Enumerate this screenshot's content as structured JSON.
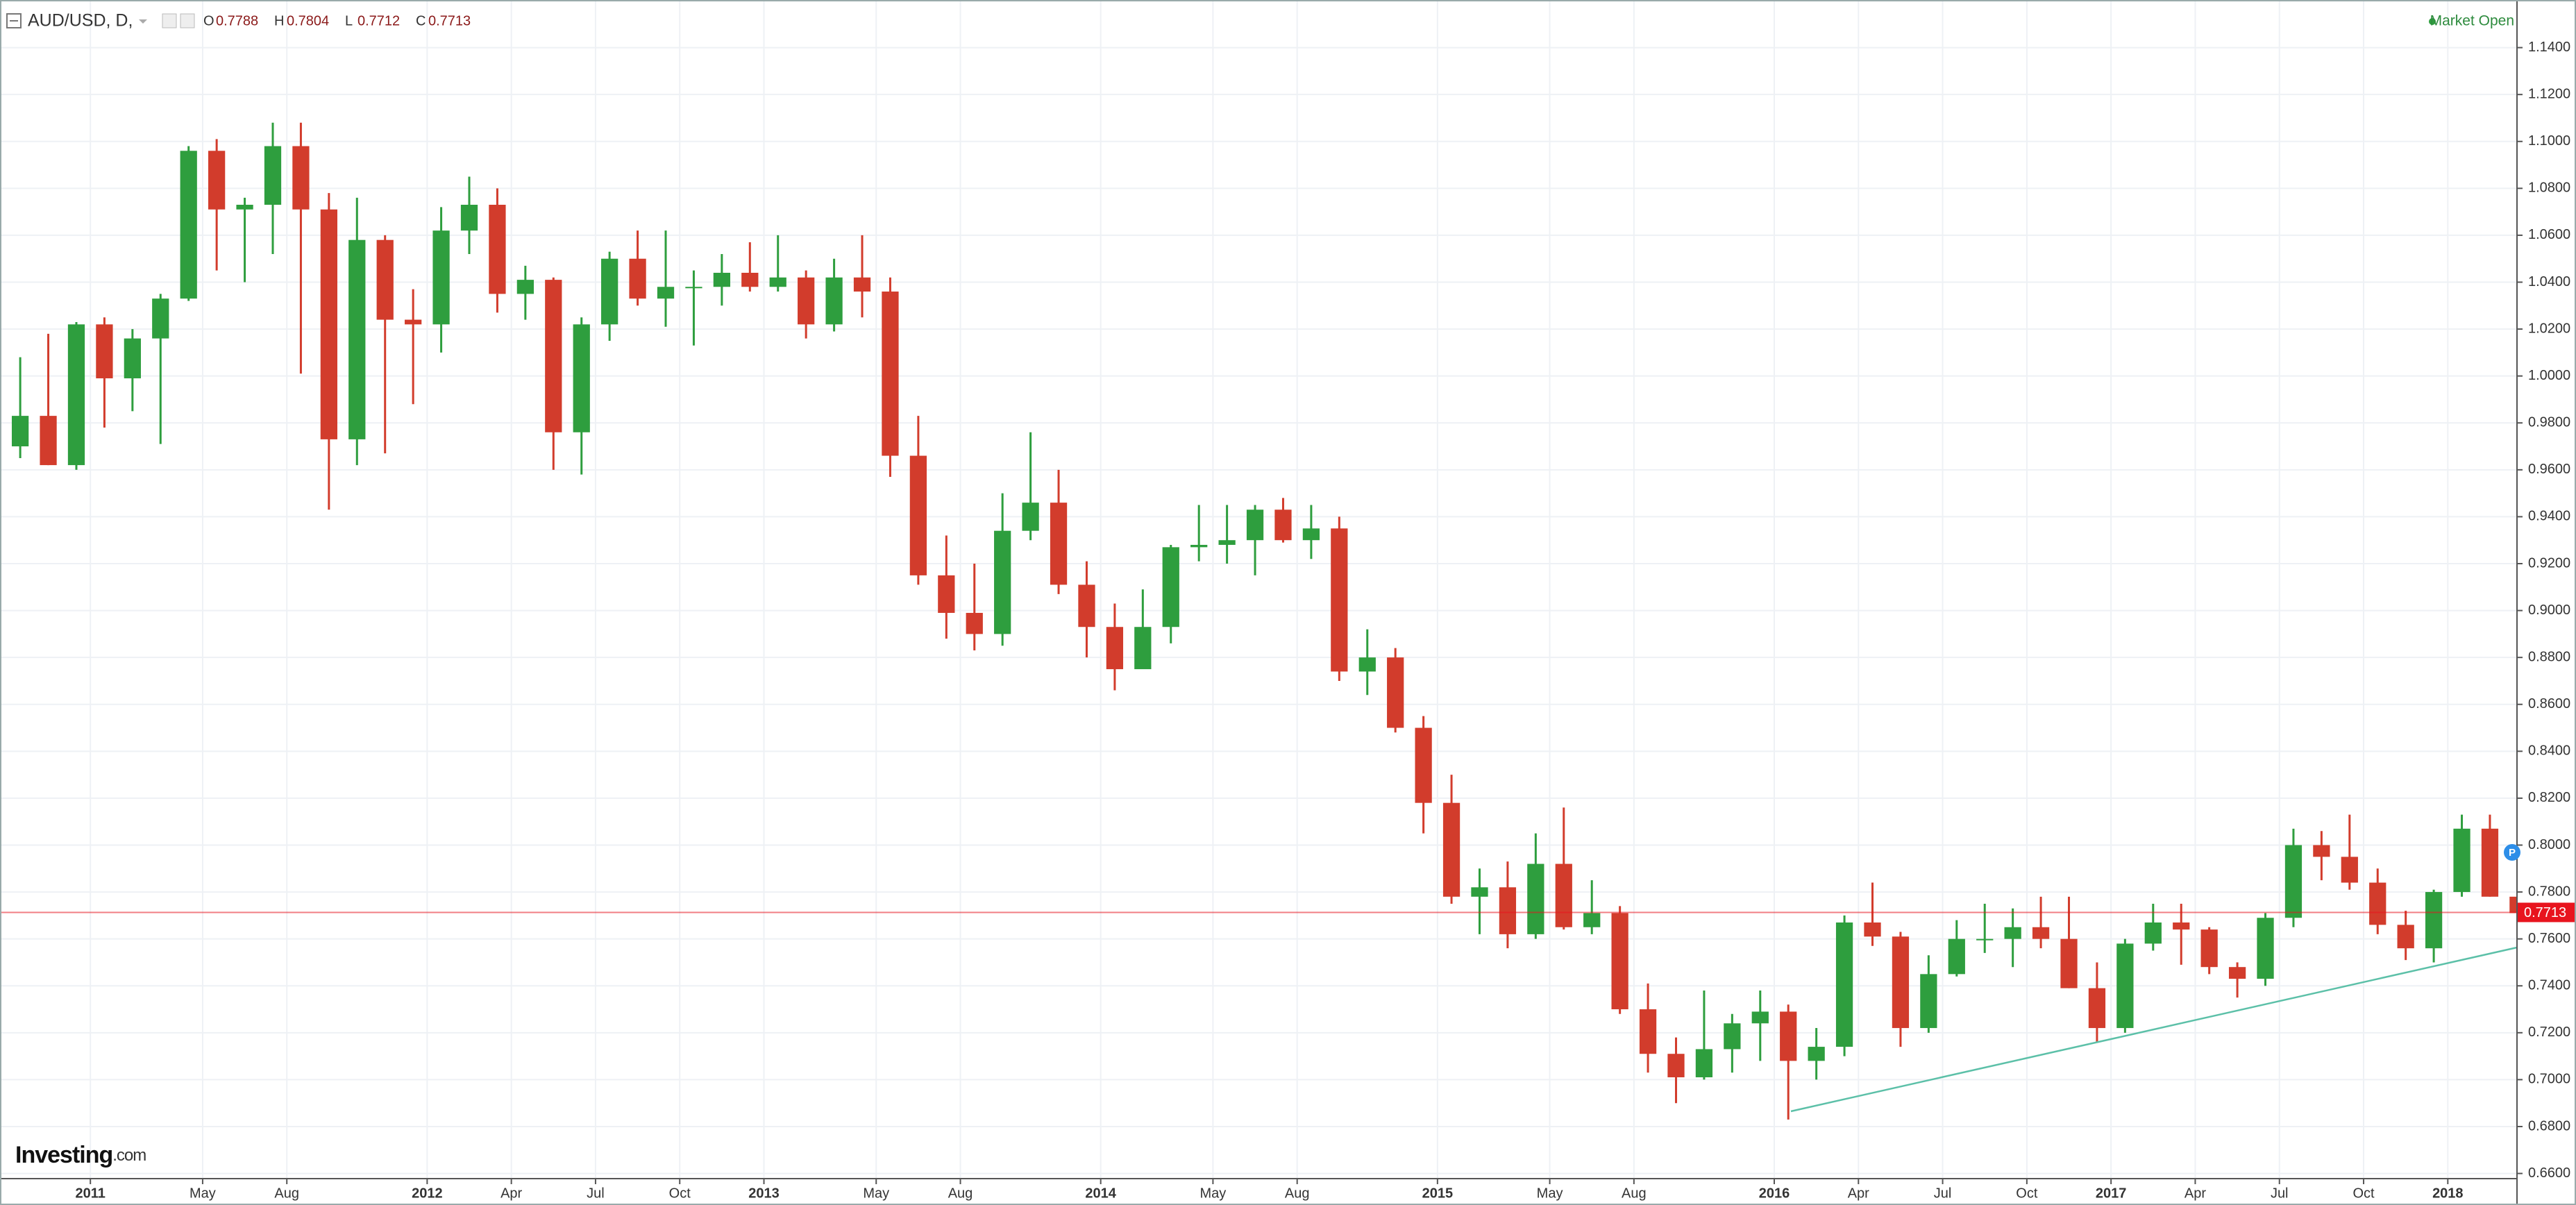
{
  "header": {
    "symbol": "AUD/USD, D,",
    "ohlc": [
      {
        "label": "O",
        "value": 0.7788
      },
      {
        "label": "H",
        "value": 0.7804
      },
      {
        "label": "L",
        "value": 0.7712
      },
      {
        "label": "C",
        "value": 0.7713
      }
    ],
    "status": "Market Open",
    "logo_main": "Investing",
    "logo_suffix": ".com"
  },
  "chart_data": {
    "type": "candlestick",
    "x": [
      "2010-10",
      "2010-11",
      "2010-12",
      "2011-01",
      "2011-02",
      "2011-03",
      "2011-04",
      "2011-05",
      "2011-06",
      "2011-07",
      "2011-08",
      "2011-09",
      "2011-10",
      "2011-11",
      "2011-12",
      "2012-01",
      "2012-02",
      "2012-03",
      "2012-04",
      "2012-05",
      "2012-06",
      "2012-07",
      "2012-08",
      "2012-09",
      "2012-10",
      "2012-11",
      "2012-12",
      "2013-01",
      "2013-02",
      "2013-03",
      "2013-04",
      "2013-05",
      "2013-06",
      "2013-07",
      "2013-08",
      "2013-09",
      "2013-10",
      "2013-11",
      "2013-12",
      "2014-01",
      "2014-02",
      "2014-03",
      "2014-04",
      "2014-05",
      "2014-06",
      "2014-07",
      "2014-08",
      "2014-09",
      "2014-10",
      "2014-11",
      "2014-12",
      "2015-01",
      "2015-02",
      "2015-03",
      "2015-04",
      "2015-05",
      "2015-06",
      "2015-07",
      "2015-08",
      "2015-09",
      "2015-10",
      "2015-11",
      "2015-12",
      "2016-01",
      "2016-02",
      "2016-03",
      "2016-04",
      "2016-05",
      "2016-06",
      "2016-07",
      "2016-08",
      "2016-09",
      "2016-10",
      "2016-11",
      "2016-12",
      "2017-01",
      "2017-02",
      "2017-03",
      "2017-04",
      "2017-05",
      "2017-06",
      "2017-07",
      "2017-08",
      "2017-09",
      "2017-10",
      "2017-11",
      "2017-12",
      "2018-01",
      "2018-02",
      "2018-03"
    ],
    "open": [
      0.97,
      0.983,
      0.962,
      1.022,
      0.999,
      1.016,
      1.033,
      1.096,
      1.071,
      1.073,
      1.098,
      1.071,
      0.973,
      1.058,
      1.024,
      1.022,
      1.062,
      1.073,
      1.035,
      1.041,
      0.976,
      1.022,
      1.05,
      1.033,
      1.038,
      1.038,
      1.044,
      1.038,
      1.042,
      1.022,
      1.042,
      1.036,
      0.966,
      0.915,
      0.899,
      0.89,
      0.934,
      0.946,
      0.911,
      0.893,
      0.875,
      0.893,
      0.927,
      0.928,
      0.93,
      0.943,
      0.93,
      0.935,
      0.874,
      0.88,
      0.85,
      0.818,
      0.778,
      0.782,
      0.762,
      0.792,
      0.765,
      0.771,
      0.73,
      0.711,
      0.701,
      0.713,
      0.724,
      0.729,
      0.708,
      0.714,
      0.767,
      0.761,
      0.722,
      0.745,
      0.76,
      0.76,
      0.765,
      0.76,
      0.739,
      0.722,
      0.758,
      0.767,
      0.764,
      0.748,
      0.743,
      0.769,
      0.8,
      0.795,
      0.784,
      0.766,
      0.756,
      0.78,
      0.807,
      0.778
    ],
    "high": [
      1.008,
      1.018,
      1.023,
      1.025,
      1.02,
      1.035,
      1.098,
      1.101,
      1.076,
      1.108,
      1.108,
      1.078,
      1.076,
      1.06,
      1.037,
      1.072,
      1.085,
      1.08,
      1.047,
      1.042,
      1.025,
      1.053,
      1.062,
      1.062,
      1.045,
      1.052,
      1.057,
      1.06,
      1.045,
      1.05,
      1.06,
      1.042,
      0.983,
      0.932,
      0.92,
      0.95,
      0.976,
      0.96,
      0.921,
      0.903,
      0.909,
      0.928,
      0.945,
      0.945,
      0.945,
      0.948,
      0.945,
      0.94,
      0.892,
      0.884,
      0.855,
      0.83,
      0.79,
      0.793,
      0.805,
      0.816,
      0.785,
      0.774,
      0.741,
      0.718,
      0.738,
      0.728,
      0.738,
      0.732,
      0.722,
      0.77,
      0.784,
      0.763,
      0.753,
      0.768,
      0.775,
      0.773,
      0.778,
      0.778,
      0.75,
      0.76,
      0.775,
      0.775,
      0.765,
      0.75,
      0.771,
      0.807,
      0.806,
      0.813,
      0.79,
      0.772,
      0.781,
      0.813,
      0.813,
      0.792
    ],
    "low": [
      0.965,
      0.962,
      0.96,
      0.978,
      0.985,
      0.971,
      1.032,
      1.045,
      1.04,
      1.052,
      1.001,
      0.943,
      0.962,
      0.967,
      0.988,
      1.01,
      1.052,
      1.027,
      1.024,
      0.96,
      0.958,
      1.015,
      1.03,
      1.021,
      1.013,
      1.03,
      1.036,
      1.036,
      1.016,
      1.019,
      1.025,
      0.957,
      0.911,
      0.888,
      0.883,
      0.885,
      0.93,
      0.907,
      0.88,
      0.866,
      0.875,
      0.886,
      0.921,
      0.92,
      0.915,
      0.929,
      0.922,
      0.87,
      0.864,
      0.848,
      0.805,
      0.775,
      0.762,
      0.756,
      0.76,
      0.764,
      0.762,
      0.728,
      0.703,
      0.69,
      0.7,
      0.703,
      0.708,
      0.683,
      0.7,
      0.71,
      0.757,
      0.714,
      0.72,
      0.744,
      0.754,
      0.748,
      0.756,
      0.739,
      0.716,
      0.72,
      0.755,
      0.749,
      0.745,
      0.735,
      0.74,
      0.765,
      0.785,
      0.781,
      0.762,
      0.751,
      0.75,
      0.778,
      0.778,
      0.768
    ],
    "close": [
      0.983,
      0.962,
      1.022,
      0.999,
      1.016,
      1.033,
      1.096,
      1.071,
      1.073,
      1.098,
      1.071,
      0.973,
      1.058,
      1.024,
      1.022,
      1.062,
      1.073,
      1.035,
      1.041,
      0.976,
      1.022,
      1.05,
      1.033,
      1.038,
      1.038,
      1.044,
      1.038,
      1.042,
      1.022,
      1.042,
      1.036,
      0.966,
      0.915,
      0.899,
      0.89,
      0.934,
      0.946,
      0.911,
      0.893,
      0.875,
      0.893,
      0.927,
      0.928,
      0.93,
      0.943,
      0.93,
      0.935,
      0.874,
      0.88,
      0.85,
      0.818,
      0.778,
      0.782,
      0.762,
      0.792,
      0.765,
      0.771,
      0.73,
      0.711,
      0.701,
      0.713,
      0.724,
      0.729,
      0.708,
      0.714,
      0.767,
      0.761,
      0.722,
      0.745,
      0.76,
      0.76,
      0.765,
      0.76,
      0.739,
      0.722,
      0.758,
      0.767,
      0.764,
      0.748,
      0.743,
      0.769,
      0.8,
      0.795,
      0.784,
      0.766,
      0.756,
      0.78,
      0.807,
      0.778,
      0.771
    ],
    "up_color": "#2e9e3e",
    "down_color": "#d23c2c",
    "ylim": [
      0.6578,
      1.1603
    ],
    "yticks": [
      {
        "value": 0.66,
        "label": "0.6600"
      },
      {
        "value": 0.68,
        "label": "0.6800"
      },
      {
        "value": 0.7,
        "label": "0.7000"
      },
      {
        "value": 0.72,
        "label": "0.7200"
      },
      {
        "value": 0.74,
        "label": "0.7400"
      },
      {
        "value": 0.76,
        "label": "0.7600"
      },
      {
        "value": 0.78,
        "label": "0.7800"
      },
      {
        "value": 0.8,
        "label": "0.8000"
      },
      {
        "value": 0.82,
        "label": "0.8200"
      },
      {
        "value": 0.84,
        "label": "0.8400"
      },
      {
        "value": 0.86,
        "label": "0.8600"
      },
      {
        "value": 0.88,
        "label": "0.8800"
      },
      {
        "value": 0.9,
        "label": "0.9000"
      },
      {
        "value": 0.92,
        "label": "0.9200"
      },
      {
        "value": 0.94,
        "label": "0.9400"
      },
      {
        "value": 0.96,
        "label": "0.9600"
      },
      {
        "value": 0.98,
        "label": "0.9800"
      },
      {
        "value": 1.0,
        "label": "1.0000"
      },
      {
        "value": 1.02,
        "label": "1.0200"
      },
      {
        "value": 1.04,
        "label": "1.0400"
      },
      {
        "value": 1.06,
        "label": "1.0600"
      },
      {
        "value": 1.08,
        "label": "1.0800"
      },
      {
        "value": 1.1,
        "label": "1.1000"
      },
      {
        "value": 1.12,
        "label": "1.1200"
      },
      {
        "value": 1.14,
        "label": "1.1400"
      }
    ],
    "xticks": [
      {
        "value": "2011-01",
        "label": "2011"
      },
      {
        "value": "2011-05",
        "label": "May"
      },
      {
        "value": "2011-08",
        "label": "Aug"
      },
      {
        "value": "2012-01",
        "label": "2012"
      },
      {
        "value": "2012-04",
        "label": "Apr"
      },
      {
        "value": "2012-07",
        "label": "Jul"
      },
      {
        "value": "2012-10",
        "label": "Oct"
      },
      {
        "value": "2013-01",
        "label": "2013"
      },
      {
        "value": "2013-05",
        "label": "May"
      },
      {
        "value": "2013-08",
        "label": "Aug"
      },
      {
        "value": "2014-01",
        "label": "2014"
      },
      {
        "value": "2014-05",
        "label": "May"
      },
      {
        "value": "2014-08",
        "label": "Aug"
      },
      {
        "value": "2015-01",
        "label": "2015"
      },
      {
        "value": "2015-05",
        "label": "May"
      },
      {
        "value": "2015-08",
        "label": "Aug"
      },
      {
        "value": "2016-01",
        "label": "2016"
      },
      {
        "value": "2016-04",
        "label": "Apr"
      },
      {
        "value": "2016-07",
        "label": "Jul"
      },
      {
        "value": "2016-10",
        "label": "Oct"
      },
      {
        "value": "2017-01",
        "label": "2017"
      },
      {
        "value": "2017-04",
        "label": "Apr"
      },
      {
        "value": "2017-07",
        "label": "Jul"
      },
      {
        "value": "2017-10",
        "label": "Oct"
      },
      {
        "value": "2018-01",
        "label": "2018"
      }
    ],
    "last_price": 0.7713,
    "last_price_color": "#e8141e",
    "grid": true
  }
}
